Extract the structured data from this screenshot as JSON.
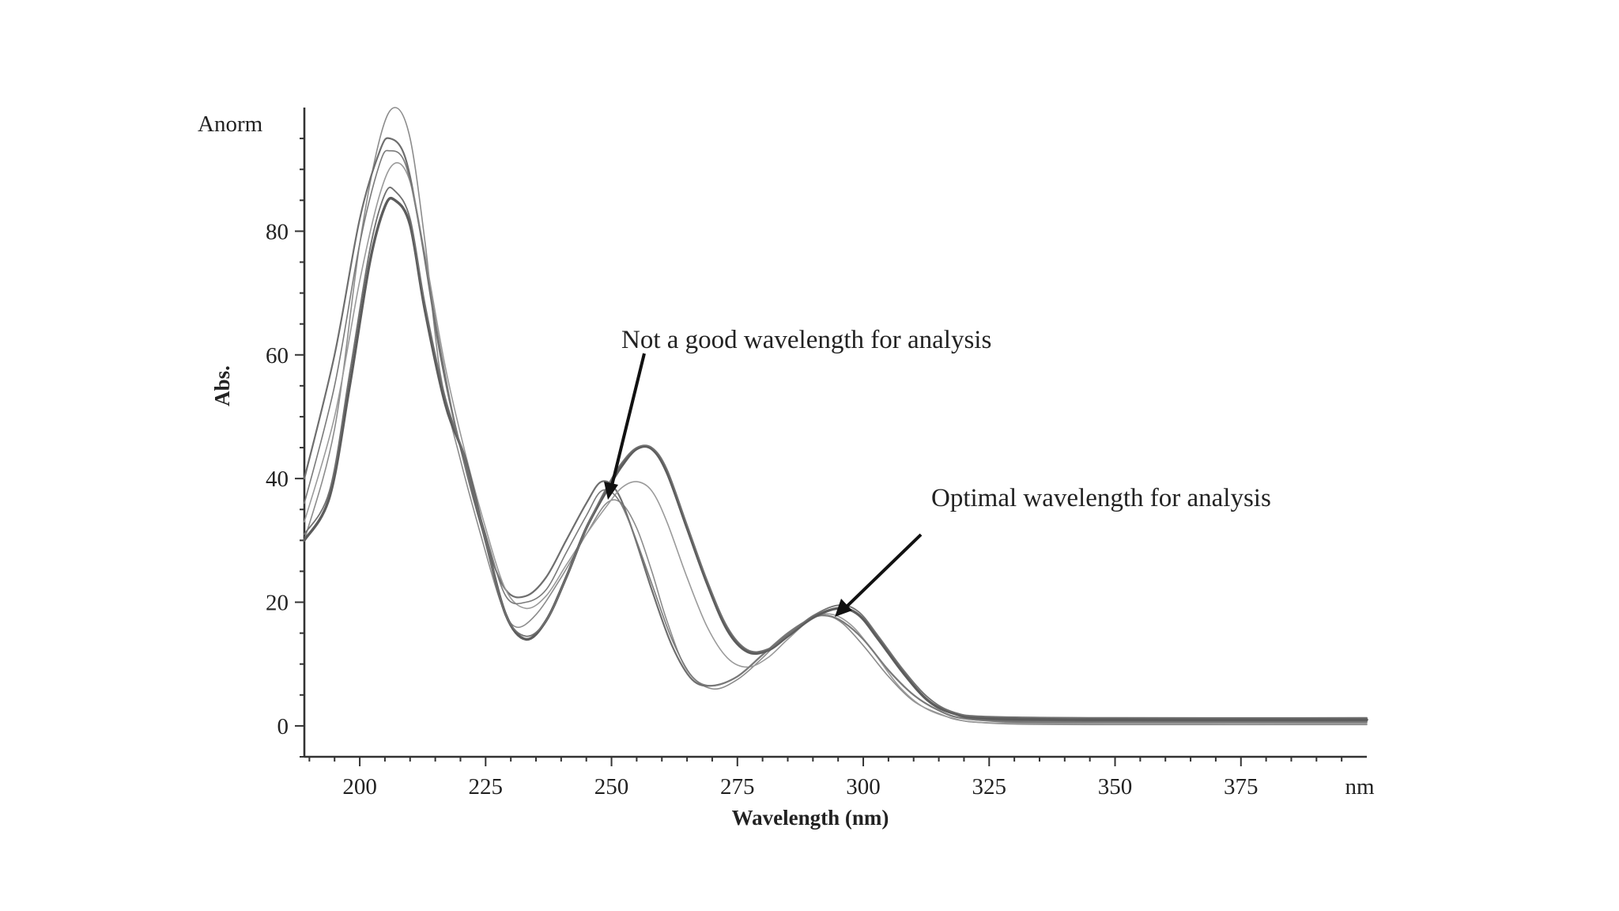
{
  "chart_data": {
    "type": "line",
    "ylabel": "Abs.",
    "y_unit_label": "Anorm",
    "xlabel": "Wavelength (nm)",
    "x_unit_label": "nm",
    "xlim": [
      189,
      400
    ],
    "ylim": [
      -5,
      100
    ],
    "xticks": [
      200,
      225,
      250,
      275,
      300,
      325,
      350,
      375
    ],
    "yticks": [
      0,
      20,
      40,
      60,
      80
    ],
    "grid": false,
    "legend": "none",
    "series": [
      {
        "color": "#8c8c8c",
        "width": 1.6,
        "points": [
          [
            189,
            30
          ],
          [
            195,
            48
          ],
          [
            200,
            78
          ],
          [
            204,
            95
          ],
          [
            207,
            100
          ],
          [
            210,
            95
          ],
          [
            213,
            78
          ],
          [
            216,
            57
          ],
          [
            220,
            43
          ],
          [
            224,
            31
          ],
          [
            228,
            20
          ],
          [
            231,
            16
          ],
          [
            235,
            18
          ],
          [
            240,
            24
          ],
          [
            245,
            31
          ],
          [
            249,
            36
          ],
          [
            252,
            36
          ],
          [
            255,
            32
          ],
          [
            258,
            25
          ],
          [
            261,
            17
          ],
          [
            265,
            9
          ],
          [
            270,
            6
          ],
          [
            275,
            7.5
          ],
          [
            280,
            11
          ],
          [
            285,
            15
          ],
          [
            290,
            17.5
          ],
          [
            293,
            17.8
          ],
          [
            296,
            16.5
          ],
          [
            300,
            13
          ],
          [
            305,
            8
          ],
          [
            310,
            4
          ],
          [
            315,
            2
          ],
          [
            320,
            0.8
          ],
          [
            330,
            0.3
          ],
          [
            350,
            0.2
          ],
          [
            400,
            0.2
          ]
        ]
      },
      {
        "color": "#6e6e6e",
        "width": 2.2,
        "points": [
          [
            189,
            40
          ],
          [
            195,
            60
          ],
          [
            200,
            82
          ],
          [
            204,
            93
          ],
          [
            206,
            95
          ],
          [
            209,
            92
          ],
          [
            212,
            80
          ],
          [
            216,
            60
          ],
          [
            220,
            45
          ],
          [
            225,
            30
          ],
          [
            229,
            22
          ],
          [
            233,
            21
          ],
          [
            237,
            24
          ],
          [
            241,
            30
          ],
          [
            245,
            36
          ],
          [
            248,
            39.5
          ],
          [
            251,
            38
          ],
          [
            254,
            32
          ],
          [
            258,
            22
          ],
          [
            262,
            13
          ],
          [
            266,
            7.5
          ],
          [
            270,
            6.5
          ],
          [
            275,
            8
          ],
          [
            280,
            11.5
          ],
          [
            285,
            15
          ],
          [
            290,
            17.5
          ],
          [
            293,
            17.8
          ],
          [
            296,
            16.8
          ],
          [
            300,
            14
          ],
          [
            305,
            9
          ],
          [
            310,
            5
          ],
          [
            315,
            2.5
          ],
          [
            320,
            1.2
          ],
          [
            330,
            0.8
          ],
          [
            350,
            0.8
          ],
          [
            400,
            0.8
          ]
        ]
      },
      {
        "color": "#9a9a9a",
        "width": 1.6,
        "points": [
          [
            189,
            33
          ],
          [
            195,
            50
          ],
          [
            200,
            72
          ],
          [
            204,
            86
          ],
          [
            207,
            91
          ],
          [
            210,
            88
          ],
          [
            213,
            76
          ],
          [
            217,
            58
          ],
          [
            221,
            44
          ],
          [
            225,
            32
          ],
          [
            229,
            22
          ],
          [
            233,
            19
          ],
          [
            237,
            21
          ],
          [
            241,
            26
          ],
          [
            245,
            31
          ],
          [
            249,
            35.5
          ],
          [
            252,
            38.5
          ],
          [
            255,
            39.5
          ],
          [
            258,
            38
          ],
          [
            261,
            33
          ],
          [
            265,
            24
          ],
          [
            269,
            16
          ],
          [
            273,
            11
          ],
          [
            277,
            9.5
          ],
          [
            281,
            11
          ],
          [
            285,
            14
          ],
          [
            290,
            17.5
          ],
          [
            294,
            18
          ],
          [
            298,
            16
          ],
          [
            302,
            12
          ],
          [
            307,
            6.5
          ],
          [
            312,
            3
          ],
          [
            318,
            1.2
          ],
          [
            325,
            0.5
          ],
          [
            350,
            0.4
          ],
          [
            400,
            0.4
          ]
        ]
      },
      {
        "color": "#7a7a7a",
        "width": 1.6,
        "points": [
          [
            189,
            36
          ],
          [
            195,
            55
          ],
          [
            200,
            78
          ],
          [
            204,
            91
          ],
          [
            206,
            93
          ],
          [
            209,
            91
          ],
          [
            212,
            80
          ],
          [
            216,
            61
          ],
          [
            220,
            45
          ],
          [
            225,
            31
          ],
          [
            229,
            21
          ],
          [
            233,
            20
          ],
          [
            237,
            22
          ],
          [
            241,
            28
          ],
          [
            245,
            34
          ],
          [
            248,
            38
          ],
          [
            251,
            37
          ],
          [
            254,
            32
          ],
          [
            258,
            23
          ],
          [
            262,
            14
          ],
          [
            266,
            8
          ],
          [
            270,
            6.5
          ],
          [
            275,
            8
          ],
          [
            280,
            11.5
          ],
          [
            285,
            15
          ],
          [
            290,
            17.5
          ],
          [
            293,
            17.8
          ],
          [
            296,
            16.8
          ],
          [
            300,
            14
          ],
          [
            305,
            9
          ],
          [
            310,
            5
          ],
          [
            315,
            2.5
          ],
          [
            320,
            1.2
          ],
          [
            330,
            0.6
          ],
          [
            350,
            0.6
          ],
          [
            400,
            0.6
          ]
        ]
      },
      {
        "color": "#5c5c5c",
        "width": 3.4,
        "points": [
          [
            189,
            30
          ],
          [
            194,
            37
          ],
          [
            198,
            55
          ],
          [
            202,
            75
          ],
          [
            205,
            84
          ],
          [
            207,
            85
          ],
          [
            210,
            81
          ],
          [
            213,
            67
          ],
          [
            217,
            52
          ],
          [
            221,
            43
          ],
          [
            225,
            30
          ],
          [
            229,
            18
          ],
          [
            233,
            14
          ],
          [
            237,
            17
          ],
          [
            241,
            24
          ],
          [
            245,
            32
          ],
          [
            249,
            38
          ],
          [
            252,
            42
          ],
          [
            255,
            44.8
          ],
          [
            258,
            44.8
          ],
          [
            261,
            41
          ],
          [
            265,
            32
          ],
          [
            269,
            23
          ],
          [
            273,
            15.5
          ],
          [
            277,
            12
          ],
          [
            281,
            12.2
          ],
          [
            285,
            14.5
          ],
          [
            290,
            17.5
          ],
          [
            295,
            19
          ],
          [
            299,
            18
          ],
          [
            303,
            14
          ],
          [
            308,
            8.5
          ],
          [
            313,
            4
          ],
          [
            318,
            2
          ],
          [
            325,
            1.2
          ],
          [
            350,
            1
          ],
          [
            400,
            1
          ]
        ]
      },
      {
        "color": "#707070",
        "width": 1.8,
        "points": [
          [
            189,
            31
          ],
          [
            194,
            38
          ],
          [
            198,
            57
          ],
          [
            202,
            77
          ],
          [
            205,
            86
          ],
          [
            207,
            86.5
          ],
          [
            210,
            82
          ],
          [
            213,
            68
          ],
          [
            217,
            53
          ],
          [
            221,
            43
          ],
          [
            225,
            30
          ],
          [
            229,
            18
          ],
          [
            233,
            14.5
          ],
          [
            237,
            17
          ],
          [
            241,
            24
          ],
          [
            245,
            32
          ],
          [
            249,
            38.5
          ],
          [
            252,
            42.5
          ],
          [
            255,
            45
          ],
          [
            258,
            45
          ],
          [
            261,
            41.5
          ],
          [
            265,
            32.5
          ],
          [
            269,
            23.5
          ],
          [
            273,
            16
          ],
          [
            277,
            12.3
          ],
          [
            281,
            12.4
          ],
          [
            285,
            14.7
          ],
          [
            290,
            17.8
          ],
          [
            295,
            19.5
          ],
          [
            299,
            18.5
          ],
          [
            303,
            14.5
          ],
          [
            308,
            9
          ],
          [
            313,
            4.5
          ],
          [
            318,
            2.2
          ],
          [
            325,
            1.5
          ],
          [
            350,
            1.3
          ],
          [
            400,
            1.3
          ]
        ]
      }
    ],
    "annotations": [
      {
        "text": "Not a good wavelength for analysis",
        "x": 250,
        "y": 38.5
      },
      {
        "text": "Optimal wavelength for analysis",
        "x": 294,
        "y": 18.5
      }
    ]
  }
}
